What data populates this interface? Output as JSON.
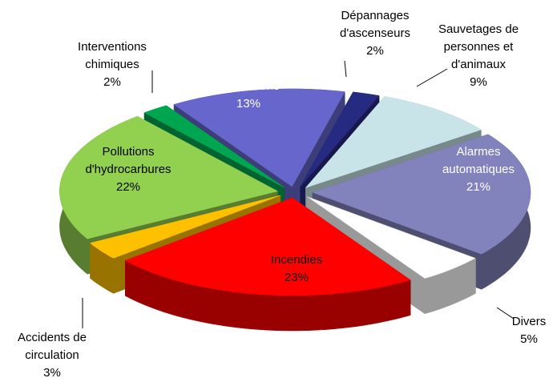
{
  "chart_data": {
    "type": "pie",
    "three_d": true,
    "exploded": true,
    "categories": [
      "Dépannages d'ascenseurs",
      "Sauvetages de personnes et d'animaux",
      "Alarmes automatiques",
      "Divers",
      "Incendies",
      "Accidents de circulation",
      "Pollutions d'hydrocarbures",
      "Interventions chimiques",
      "Inondations"
    ],
    "values": [
      2,
      9,
      21,
      5,
      23,
      3,
      22,
      2,
      13
    ],
    "value_labels": [
      "2%",
      "9%",
      "21%",
      "5%",
      "23%",
      "3%",
      "22%",
      "2%",
      "13%"
    ],
    "colors": [
      "#262a80",
      "#c8e4e8",
      "#8282bc",
      "#ffffff",
      "#ff0000",
      "#ffc000",
      "#92d050",
      "#00a550",
      "#6666cc"
    ]
  }
}
